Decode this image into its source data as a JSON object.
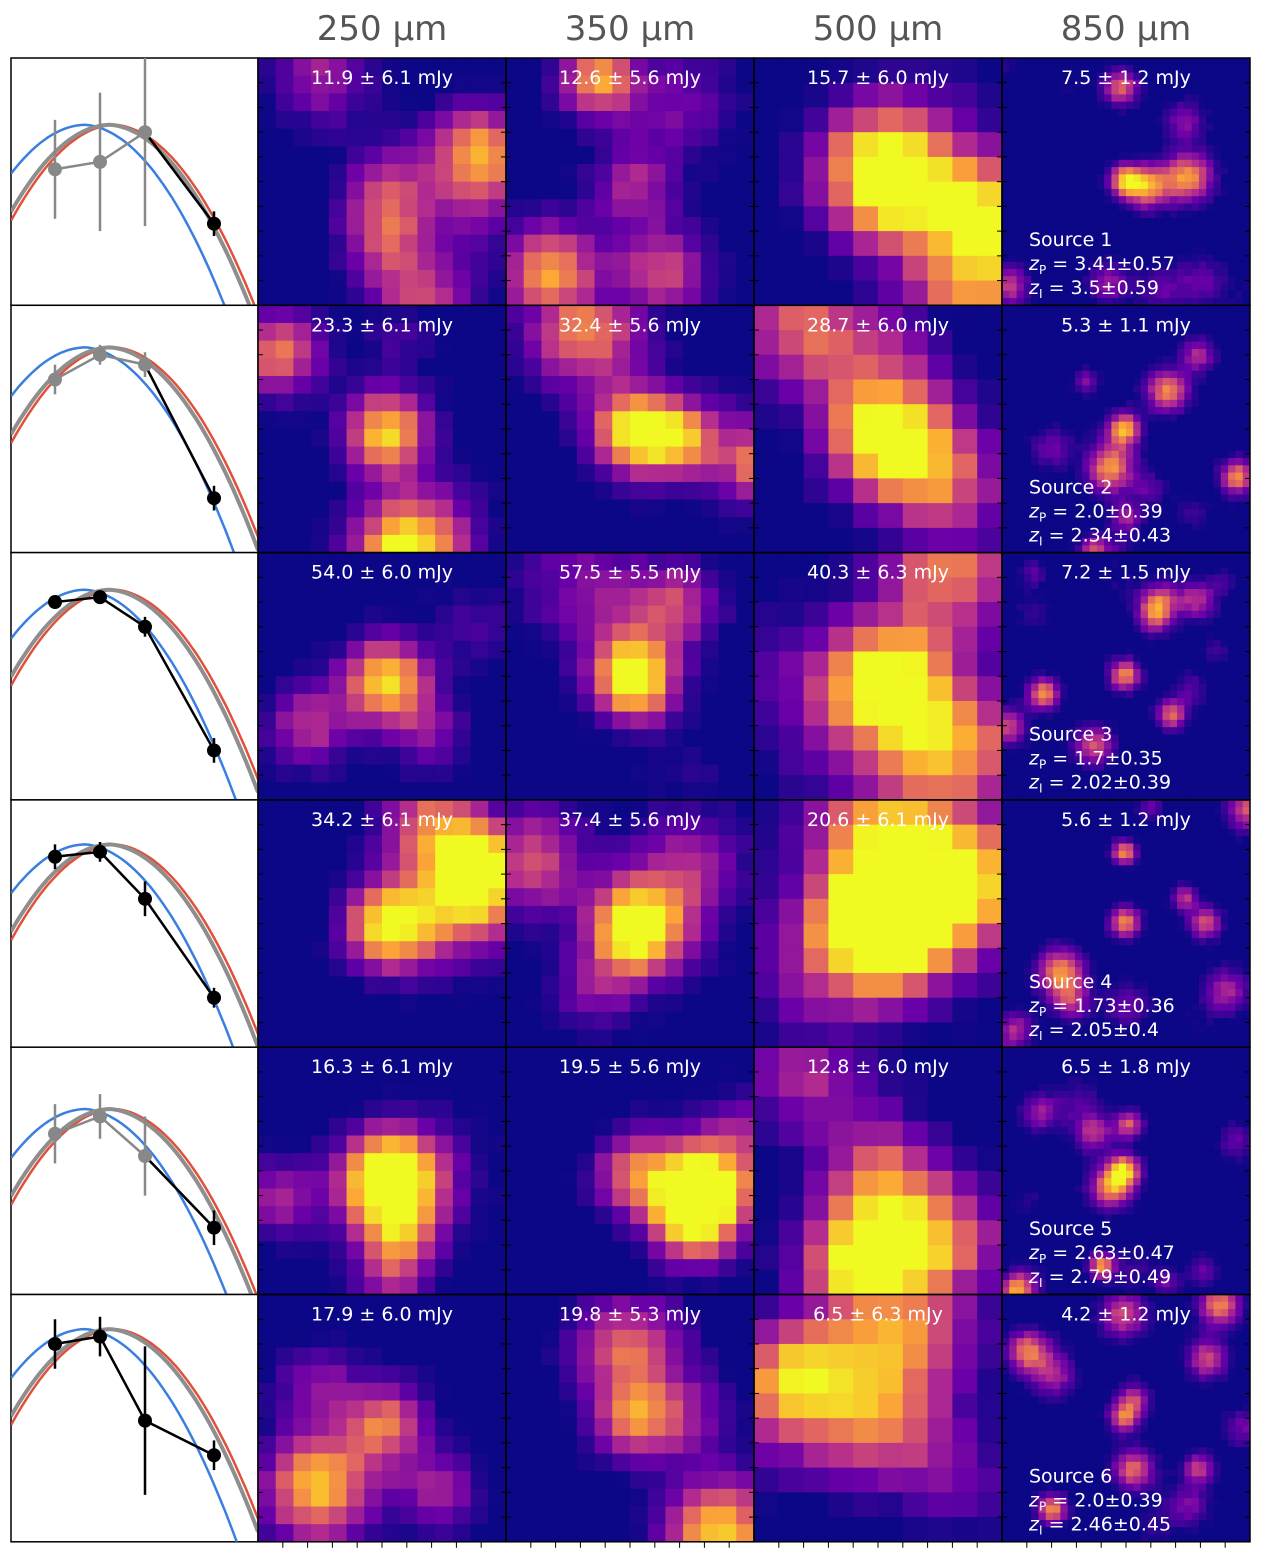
{
  "columns": [
    "250 µm",
    "350 µm",
    "500 µm",
    "850 µm"
  ],
  "colors": {
    "model_a": "#3a7fe0",
    "model_b": "#e0503a",
    "model_c": "#8e8e8e",
    "detected": "#000000",
    "undetected": "#888888",
    "map_low": "#0c0786",
    "map_mid": "#b12a90",
    "map_high": "#f0f921"
  },
  "sources": [
    {
      "label": "Source 1",
      "zp_prefix": "z",
      "zp_sub": "P",
      "zp_text": " = 3.41±0.57",
      "zi_prefix": "z",
      "zi_sub": "I",
      "zi_text": " = 3.5±0.59",
      "fluxes": [
        "11.9 ± 6.1 mJy",
        "12.6 ± 5.6 mJy",
        "15.7 ± 6.0 mJy",
        "7.5 ± 1.2 mJy"
      ],
      "intensity": [
        0.35,
        0.35,
        0.4,
        0.6
      ],
      "sed_points": [
        0.55,
        0.58,
        0.7,
        0.33
      ],
      "sed_err": [
        0.2,
        0.28,
        0.38,
        0.05
      ],
      "sed_detected": [
        false,
        false,
        false,
        true
      ]
    },
    {
      "label": "Source 2",
      "zp_prefix": "z",
      "zp_sub": "P",
      "zp_text": " = 2.0±0.39",
      "zi_prefix": "z",
      "zi_sub": "I",
      "zi_text": " = 2.34±0.43",
      "fluxes": [
        "23.3 ± 6.1 mJy",
        "32.4 ± 5.6 mJy",
        "28.7 ± 6.0 mJy",
        "5.3 ± 1.1 mJy"
      ],
      "intensity": [
        0.7,
        0.8,
        0.8,
        0.6
      ],
      "sed_points": [
        0.7,
        0.8,
        0.76,
        0.22
      ],
      "sed_err": [
        0.06,
        0.04,
        0.05,
        0.05
      ],
      "sed_detected": [
        false,
        false,
        false,
        true
      ]
    },
    {
      "label": "Source 3",
      "zp_prefix": "z",
      "zp_sub": "P",
      "zp_text": " = 1.7±0.35",
      "zi_prefix": "z",
      "zi_sub": "I",
      "zi_text": " = 2.02±0.39",
      "fluxes": [
        "54.0 ± 6.0 mJy",
        "57.5 ± 5.5 mJy",
        "40.3 ± 6.3 mJy",
        "7.2 ± 1.5 mJy"
      ],
      "intensity": [
        0.75,
        0.85,
        0.85,
        0.6
      ],
      "sed_points": [
        0.8,
        0.82,
        0.7,
        0.2
      ],
      "sed_err": [
        0.02,
        0.02,
        0.04,
        0.05
      ],
      "sed_detected": [
        true,
        true,
        true,
        true
      ]
    },
    {
      "label": "Source 4",
      "zp_prefix": "z",
      "zp_sub": "P",
      "zp_text": " = 1.73±0.36",
      "zi_prefix": "z",
      "zi_sub": "I",
      "zi_text": " = 2.05±0.4",
      "fluxes": [
        "34.2 ± 6.1 mJy",
        "37.4 ± 5.6 mJy",
        "20.6 ± 6.1 mJy",
        "5.6 ± 1.2 mJy"
      ],
      "intensity": [
        0.7,
        0.75,
        0.7,
        0.6
      ],
      "sed_points": [
        0.77,
        0.79,
        0.6,
        0.2
      ],
      "sed_err": [
        0.05,
        0.04,
        0.07,
        0.04
      ],
      "sed_detected": [
        true,
        true,
        true,
        true
      ]
    },
    {
      "label": "Source 5",
      "zp_prefix": "z",
      "zp_sub": "P",
      "zp_text": " = 2.63±0.47",
      "zi_prefix": "z",
      "zi_sub": "I",
      "zi_text": " = 2.79±0.49",
      "fluxes": [
        "16.3 ± 6.1 mJy",
        "19.5 ± 5.6 mJy",
        "12.8 ± 6.0 mJy",
        "6.5 ± 1.8 mJy"
      ],
      "intensity": [
        0.5,
        0.5,
        0.45,
        0.6
      ],
      "sed_points": [
        0.65,
        0.72,
        0.56,
        0.27
      ],
      "sed_err": [
        0.12,
        0.09,
        0.16,
        0.07
      ],
      "sed_detected": [
        false,
        false,
        false,
        true
      ]
    },
    {
      "label": "Source 6",
      "zp_prefix": "z",
      "zp_sub": "P",
      "zp_text": " = 2.0±0.39",
      "zi_prefix": "z",
      "zi_sub": "I",
      "zi_text": " = 2.46±0.45",
      "fluxes": [
        "17.9 ± 6.0 mJy",
        "19.8 ± 5.3 mJy",
        "6.5 ± 6.3 mJy",
        "4.2 ± 1.2 mJy"
      ],
      "intensity": [
        0.5,
        0.5,
        0.4,
        0.55
      ],
      "sed_points": [
        0.8,
        0.83,
        0.49,
        0.35
      ],
      "sed_err": [
        0.1,
        0.08,
        0.3,
        0.06
      ],
      "sed_detected": [
        true,
        true,
        true,
        true
      ]
    }
  ],
  "chart_data": {
    "type": "grid",
    "title": "",
    "columns": [
      "250 µm",
      "350 µm",
      "500 µm",
      "850 µm"
    ],
    "rows": [
      "Source 1",
      "Source 2",
      "Source 3",
      "Source 4",
      "Source 5",
      "Source 6"
    ],
    "fluxes_mJy": [
      [
        [
          11.9,
          6.1
        ],
        [
          12.6,
          5.6
        ],
        [
          15.7,
          6.0
        ],
        [
          7.5,
          1.2
        ]
      ],
      [
        [
          23.3,
          6.1
        ],
        [
          32.4,
          5.6
        ],
        [
          28.7,
          6.0
        ],
        [
          5.3,
          1.1
        ]
      ],
      [
        [
          54.0,
          6.0
        ],
        [
          57.5,
          5.5
        ],
        [
          40.3,
          6.3
        ],
        [
          7.2,
          1.5
        ]
      ],
      [
        [
          34.2,
          6.1
        ],
        [
          37.4,
          5.6
        ],
        [
          20.6,
          6.1
        ],
        [
          5.6,
          1.2
        ]
      ],
      [
        [
          16.3,
          6.1
        ],
        [
          19.5,
          5.6
        ],
        [
          12.8,
          6.0
        ],
        [
          6.5,
          1.8
        ]
      ],
      [
        [
          17.9,
          6.0
        ],
        [
          19.8,
          5.3
        ],
        [
          6.5,
          6.3
        ],
        [
          4.2,
          1.2
        ]
      ]
    ],
    "redshift_P": [
      [
        3.41,
        0.57
      ],
      [
        2.0,
        0.39
      ],
      [
        1.7,
        0.35
      ],
      [
        1.73,
        0.36
      ],
      [
        2.63,
        0.47
      ],
      [
        2.0,
        0.39
      ]
    ],
    "redshift_I": [
      [
        3.5,
        0.59
      ],
      [
        2.34,
        0.43
      ],
      [
        2.02,
        0.39
      ],
      [
        2.05,
        0.4
      ],
      [
        2.79,
        0.49
      ],
      [
        2.46,
        0.45
      ]
    ]
  }
}
